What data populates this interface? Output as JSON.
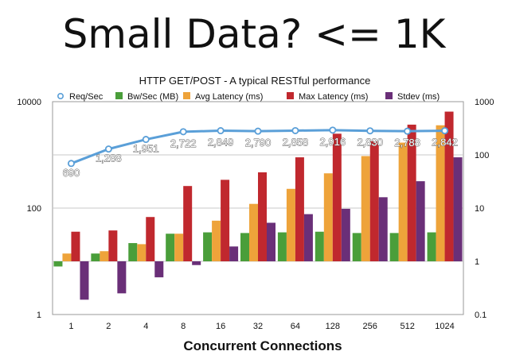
{
  "slide_title": "Small Data? <= 1K",
  "colors": {
    "req": "#5a9fd8",
    "bw": "#4a9e3a",
    "avg": "#eea33a",
    "max": "#c0282e",
    "stdev": "#6a2f78",
    "grid": "#c8c8c8",
    "label_text": "#ffffff"
  },
  "chart_data": {
    "type": "bar",
    "title": "HTTP GET/POST - A typical RESTful performance",
    "xlabel": "Concurrent Connections",
    "categories": [
      "1",
      "2",
      "4",
      "8",
      "16",
      "32",
      "64",
      "128",
      "256",
      "512",
      "1024"
    ],
    "left_axis": {
      "scale": "log",
      "range": [
        1,
        10000
      ],
      "ticks": [
        "1",
        "100",
        "10000"
      ]
    },
    "right_axis": {
      "scale": "log",
      "range": [
        0.1,
        1000
      ],
      "ticks": [
        "0.1",
        "1",
        "10",
        "100",
        "1000"
      ]
    },
    "bar_baseline_right": 1,
    "legend_position": "top",
    "series": [
      {
        "name": "Req/Sec",
        "type": "line",
        "axis": "left",
        "values": [
          690,
          1288,
          1951,
          2722,
          2849,
          2790,
          2858,
          2916,
          2830,
          2788,
          2842
        ],
        "labels": [
          "690",
          "1,288",
          "1,951",
          "2,722",
          "2,849",
          "2,790",
          "2,858",
          "2,916",
          "2,830",
          "2,788",
          "2,842"
        ]
      },
      {
        "name": "Bw/Sec (MB)",
        "type": "bar",
        "axis": "right",
        "values": [
          0.8,
          1.4,
          2.2,
          3.3,
          3.5,
          3.4,
          3.5,
          3.6,
          3.4,
          3.4,
          3.5
        ]
      },
      {
        "name": "Avg Latency (ms)",
        "type": "bar",
        "axis": "right",
        "values": [
          1.4,
          1.55,
          2.1,
          3.3,
          5.8,
          12,
          23,
          45,
          95,
          170,
          360
        ]
      },
      {
        "name": "Max Latency (ms)",
        "type": "bar",
        "axis": "right",
        "values": [
          3.6,
          3.8,
          6.8,
          26,
          34,
          47,
          90,
          250,
          180,
          370,
          650
        ]
      },
      {
        "name": "Stdev (ms)",
        "type": "bar",
        "axis": "right",
        "values": [
          0.19,
          0.25,
          0.5,
          0.85,
          1.9,
          5.3,
          7.7,
          9.7,
          16,
          32,
          90
        ]
      }
    ]
  }
}
